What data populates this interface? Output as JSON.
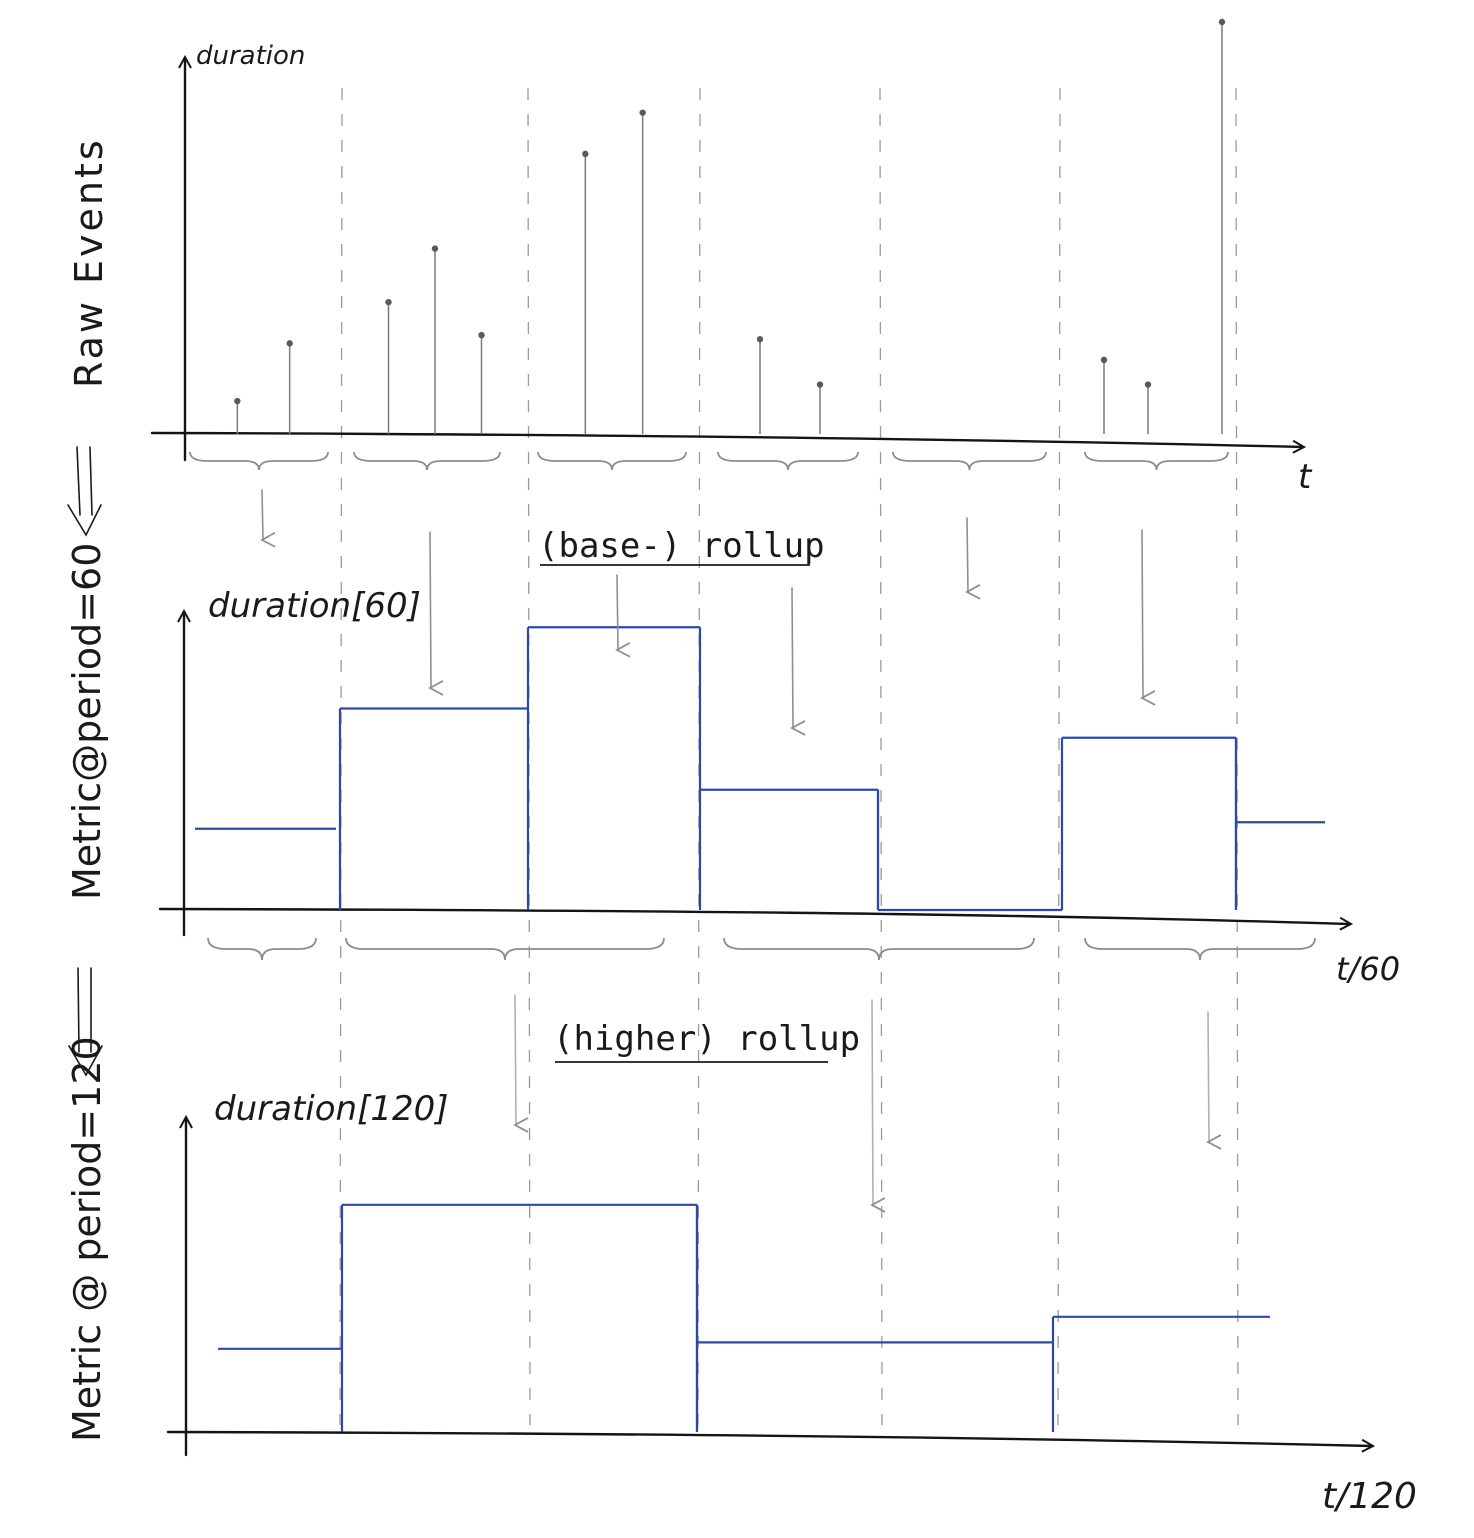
{
  "panels": {
    "raw": {
      "side_label": "Raw Events",
      "y_label": "duration",
      "x_label": "t"
    },
    "rollup60": {
      "side_label": "Metric@period=60",
      "y_label": "duration[60]",
      "x_label": "t/60"
    },
    "rollup120": {
      "side_label": "Metric @ period=120",
      "y_label": "duration[120]",
      "x_label": "t/120"
    }
  },
  "captions": {
    "base_rollup": "(base-) rollup",
    "higher_rollup": "(higher) rollup"
  },
  "colors": {
    "ink": "#141414",
    "step_line": "#2a4aa6",
    "guide": "#9a9a9a"
  },
  "chart_data": {
    "type": "diagram",
    "raw_events": {
      "intervals": [
        {
          "events": [
            0.08,
            0.22
          ]
        },
        {
          "events": [
            0.32,
            0.45,
            0.24
          ]
        },
        {
          "events": [
            0.68,
            0.78
          ]
        },
        {
          "events": [
            0.23,
            0.12
          ]
        },
        {
          "events": []
        },
        {
          "events": [
            0.18,
            0.12,
            1.0
          ]
        }
      ]
    },
    "period_60_values": [
      0.25,
      0.62,
      0.87,
      0.37,
      0.0,
      0.53,
      0.27
    ],
    "period_120_values": [
      0.26,
      0.71,
      0.28,
      0.36
    ]
  }
}
